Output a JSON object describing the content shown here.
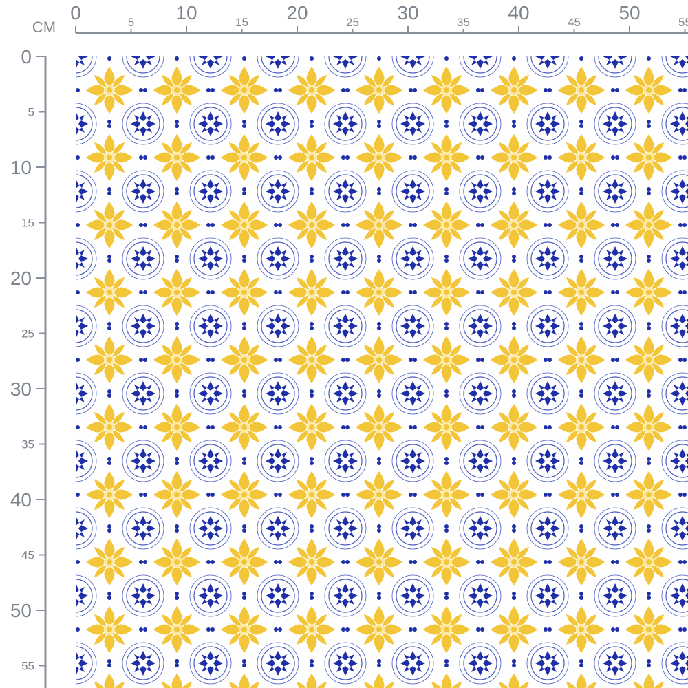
{
  "ruler": {
    "unit": "CM",
    "top_ticks": [
      0,
      5,
      10,
      15,
      20,
      25,
      30,
      35,
      40,
      45,
      50,
      55
    ],
    "left_ticks": [
      0,
      5,
      10,
      15,
      20,
      25,
      30,
      35,
      40,
      45,
      50,
      55
    ]
  }
}
